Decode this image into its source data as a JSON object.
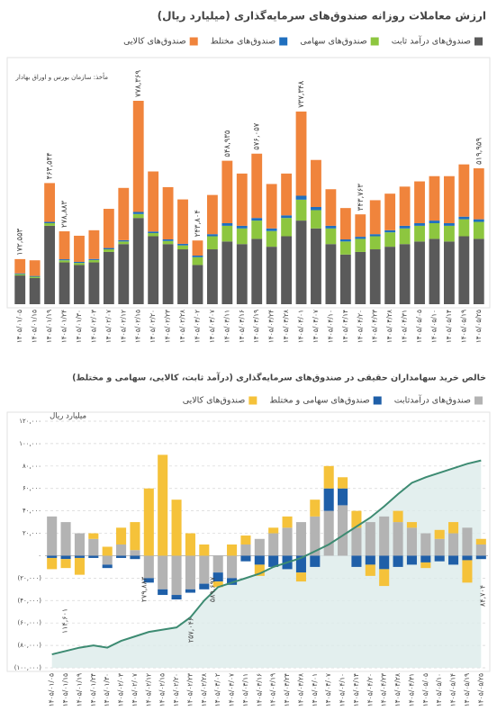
{
  "chart_data": [
    {
      "type": "bar",
      "stacked": true,
      "title": "ارزش معاملات روزانه صندوق‌های سرمایه‌گذاری (میلیارد ریال)",
      "source": "مأخذ: سازمان بورس و اوراق بهادار",
      "categories": [
        "۱۴۰۵/۰۱/۰۵",
        "۱۴۰۵/۰۱/۱۵",
        "۱۴۰۵/۰۱/۱۹",
        "۱۴۰۵/۰۱/۲۴",
        "۱۴۰۵/۰۱/۳۰",
        "۱۴۰۵/۰۲/۰۳",
        "۱۴۰۵/۰۲/۰۷",
        "۱۴۰۵/۰۲/۱۲",
        "۱۴۰۵/۰۲/۱۵",
        "۱۴۰۵/۰۲/۲۰",
        "۱۴۰۵/۰۲/۲۳",
        "۱۴۰۵/۰۲/۲۸",
        "۱۴۰۵/۰۳/۰۲",
        "۱۴۰۵/۰۳/۰۷",
        "۱۴۰۵/۰۳/۱۱",
        "۱۴۰۵/۰۳/۱۶",
        "۱۴۰۵/۰۳/۱۹",
        "۱۴۰۵/۰۳/۲۴",
        "۱۴۰۵/۰۳/۲۸",
        "۱۴۰۵/۰۴/۰۱",
        "۱۴۰۵/۰۴/۰۷",
        "۱۴۰۵/۰۴/۱۰",
        "۱۴۰۵/۰۴/۱۴",
        "۱۴۰۵/۰۴/۲۰",
        "۱۴۰۵/۰۴/۲۳",
        "۱۴۰۵/۰۴/۲۸",
        "۱۴۰۵/۰۴/۳۱",
        "۱۴۰۵/۰۵/۰۵",
        "۱۴۰۵/۰۵/۱۰",
        "۱۴۰۵/۰۵/۱۴",
        "۱۴۰۵/۰۵/۱۹",
        "۱۴۰۵/۰۵/۲۵"
      ],
      "series": [
        {
          "name": "صندوق‌های درآمد ثابت",
          "color": "#5a5a5a",
          "values": [
            110000,
            100000,
            300000,
            160000,
            150000,
            160000,
            200000,
            230000,
            330000,
            260000,
            230000,
            210000,
            150000,
            210000,
            240000,
            230000,
            250000,
            220000,
            260000,
            320000,
            290000,
            230000,
            190000,
            200000,
            210000,
            220000,
            230000,
            240000,
            250000,
            240000,
            260000,
            250000
          ]
        },
        {
          "name": "صندوق‌های سهامی",
          "color": "#8dc63f",
          "values": [
            5000,
            5000,
            10000,
            8000,
            8000,
            9000,
            10000,
            10000,
            15000,
            12000,
            12000,
            15000,
            30000,
            50000,
            60000,
            60000,
            70000,
            60000,
            70000,
            80000,
            70000,
            60000,
            50000,
            50000,
            50000,
            55000,
            60000,
            60000,
            60000,
            60000,
            65000,
            65000
          ]
        },
        {
          "name": "صندوق‌های مختلط",
          "color": "#1f6fbf",
          "values": [
            3000,
            3000,
            5000,
            4000,
            4000,
            4000,
            5000,
            5000,
            8000,
            6000,
            6000,
            6000,
            6000,
            8000,
            10000,
            10000,
            10000,
            10000,
            10000,
            15000,
            12000,
            10000,
            8000,
            8000,
            8000,
            8000,
            10000,
            10000,
            10000,
            10000,
            10000,
            10000
          ]
        },
        {
          "name": "صندوق‌های کالایی",
          "color": "#f0843c",
          "values": [
            54553,
            60000,
            148544,
            106883,
            100000,
            110000,
            150000,
            200000,
            425369,
            230000,
            200000,
            170000,
            57804,
            150000,
            238935,
            200000,
            246057,
            170000,
            160000,
            322348,
            180000,
            140000,
            120000,
            85763,
            130000,
            140000,
            150000,
            160000,
            170000,
            180000,
            200000,
            194959
          ]
        }
      ],
      "total_labels": [
        "۱۷۲,۵۵۳",
        null,
        "۴۶۳,۵۴۴",
        "۲۷۸,۸۸۳",
        null,
        null,
        null,
        null,
        "۷۷۸,۳۶۹",
        null,
        null,
        null,
        "۲۴۳,۸۰۴",
        null,
        "۵۴۸,۹۳۵",
        null,
        "۵۷۶,۰۵۷",
        null,
        null,
        "۷۳۷,۳۴۸",
        null,
        null,
        null,
        "۳۴۳,۷۶۳",
        null,
        null,
        null,
        null,
        null,
        null,
        null,
        "۵۱۹,۹۵۹"
      ]
    },
    {
      "type": "bar",
      "stacked": true,
      "title": "خالص خرید سهامداران حقیقی در صندوق‌های سرمایه‌گذاری (درآمد ثابت، کالایی، سهامی و مختلط)",
      "ylabel": "میلیارد ریال",
      "grid": true,
      "categories": [
        "۱۴۰۵/۰۱/۰۵",
        "۱۴۰۵/۰۱/۱۵",
        "۱۴۰۵/۰۱/۱۹",
        "۱۴۰۵/۰۱/۲۴",
        "۱۴۰۵/۰۱/۳۰",
        "۱۴۰۵/۰۲/۰۳",
        "۱۴۰۵/۰۲/۰۷",
        "۱۴۰۵/۰۲/۱۲",
        "۱۴۰۵/۰۲/۱۵",
        "۱۴۰۵/۰۲/۲۰",
        "۱۴۰۵/۰۲/۲۳",
        "۱۴۰۵/۰۲/۲۸",
        "۱۴۰۵/۰۳/۰۲",
        "۱۴۰۵/۰۳/۰۷",
        "۱۴۰۵/۰۳/۱۱",
        "۱۴۰۵/۰۳/۱۶",
        "۱۴۰۵/۰۳/۱۹",
        "۱۴۰۵/۰۳/۲۴",
        "۱۴۰۵/۰۳/۲۸",
        "۱۴۰۵/۰۴/۰۱",
        "۱۴۰۵/۰۴/۰۷",
        "۱۴۰۵/۰۴/۱۰",
        "۱۴۰۵/۰۴/۱۴",
        "۱۴۰۵/۰۴/۲۰",
        "۱۴۰۵/۰۴/۲۳",
        "۱۴۰۵/۰۴/۲۸",
        "۱۴۰۵/۰۴/۳۱",
        "۱۴۰۵/۰۵/۰۵",
        "۱۴۰۵/۰۵/۱۰",
        "۱۴۰۵/۰۵/۱۴",
        "۱۴۰۵/۰۵/۱۹",
        "۱۴۰۵/۰۵/۲۵"
      ],
      "series": [
        {
          "name": "صندوق‌های درآمدثابت",
          "color": "#b3b3b3",
          "values": [
            35000,
            30000,
            20000,
            15000,
            -8000,
            10000,
            5000,
            -20000,
            -30000,
            -35000,
            -30000,
            -25000,
            -15000,
            -20000,
            10000,
            15000,
            20000,
            25000,
            30000,
            35000,
            40000,
            45000,
            25000,
            30000,
            35000,
            30000,
            25000,
            20000,
            15000,
            20000,
            25000,
            10000
          ]
        },
        {
          "name": "صندوق‌های سهامی و مختلط",
          "color": "#1f5fa8",
          "values": [
            -2000,
            -3000,
            -2000,
            -2000,
            -3000,
            -2000,
            -3000,
            -4000,
            -5000,
            -4000,
            -3000,
            -5000,
            -8000,
            -6000,
            -5000,
            -8000,
            -10000,
            -12000,
            -15000,
            -10000,
            20000,
            15000,
            -10000,
            -8000,
            -12000,
            -10000,
            -8000,
            -6000,
            -5000,
            -8000,
            -4000,
            -3000
          ]
        },
        {
          "name": "صندوق‌های کالایی",
          "color": "#f5c23a",
          "values": [
            -10000,
            -8000,
            -15000,
            5000,
            8000,
            15000,
            25000,
            60000,
            90000,
            50000,
            20000,
            10000,
            -5000,
            10000,
            8000,
            -10000,
            5000,
            10000,
            -8000,
            15000,
            20000,
            10000,
            15000,
            -10000,
            -15000,
            10000,
            5000,
            -5000,
            8000,
            10000,
            -20000,
            5000
          ]
        }
      ],
      "line": {
        "color": "#3d8b72",
        "values": [
          -88000,
          -85000,
          -82000,
          -80000,
          -82000,
          -76000,
          -72000,
          -68000,
          -66000,
          -64000,
          -55000,
          -40000,
          -28000,
          -24000,
          -20000,
          -16000,
          -10000,
          -6000,
          -2000,
          4000,
          10000,
          18000,
          26000,
          34000,
          44000,
          55000,
          65000,
          70000,
          74000,
          78000,
          82000,
          85000
        ]
      },
      "annotations": [
        "۱۱۴,۶۰۱",
        "۲۷۹,۸۸۳",
        "۲۵۷,۰۴۶",
        "۵۸۹,۶۹۷",
        "۸۴,۷۰۴"
      ],
      "ylim": [
        -100000,
        120000
      ],
      "yticks": [
        {
          "value": -100000,
          "label": "(۱۰۰,۰۰۰)"
        },
        {
          "value": -80000,
          "label": "(۸۰,۰۰۰)"
        },
        {
          "value": -60000,
          "label": "(۶۰,۰۰۰)"
        },
        {
          "value": -40000,
          "label": "(۴۰,۰۰۰)"
        },
        {
          "value": -20000,
          "label": "(۲۰,۰۰۰)"
        },
        {
          "value": 0,
          "label": "۰"
        },
        {
          "value": 20000,
          "label": "۲۰,۰۰۰"
        },
        {
          "value": 40000,
          "label": "۴۰,۰۰۰"
        },
        {
          "value": 60000,
          "label": "۶۰,۰۰۰"
        },
        {
          "value": 80000,
          "label": "۸۰,۰۰۰"
        },
        {
          "value": 100000,
          "label": "۱۰۰,۰۰۰"
        },
        {
          "value": 120000,
          "label": "۱۲۰,۰۰۰"
        }
      ]
    }
  ]
}
